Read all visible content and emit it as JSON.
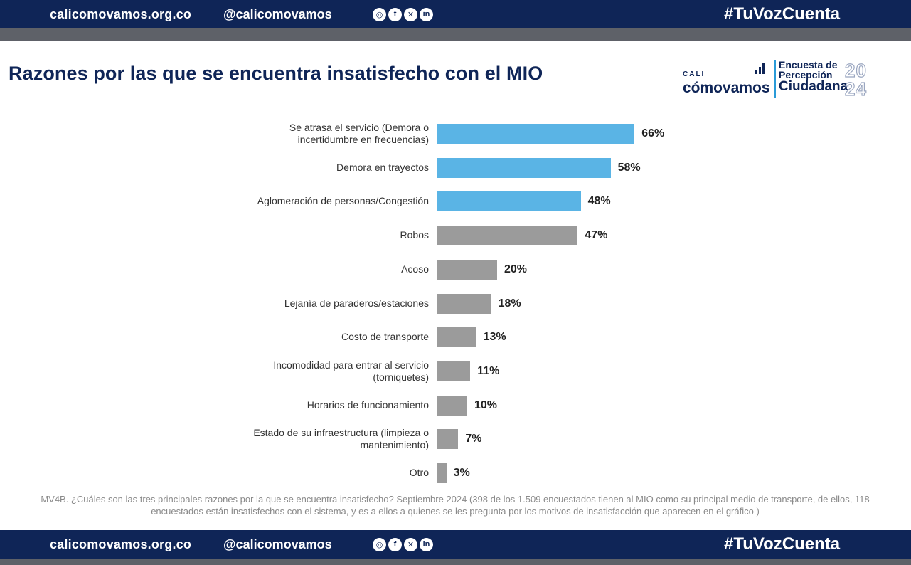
{
  "header": {
    "site": "calicomovamos.org.co",
    "handle": "@calicomovamos",
    "social_icons": [
      "instagram-icon",
      "facebook-icon",
      "x-icon",
      "linkedin-icon"
    ],
    "social_glyphs": [
      "◎",
      "f",
      "✕",
      "in"
    ],
    "hashtag": "#TuVozCuenta"
  },
  "footer": {
    "site": "calicomovamos.org.co",
    "handle": "@calicomovamos",
    "hashtag": "#TuVozCuenta"
  },
  "logo": {
    "cali": "CALI",
    "brand": "cómovamos",
    "line1": "Encuesta de",
    "line2": "Percepción",
    "line3": "Ciudadana",
    "year_top": "20",
    "year_bottom": "24"
  },
  "colors": {
    "navy": "#0f2557",
    "highlight": "#5ab4e5",
    "neutral": "#9b9b9b"
  },
  "footnote": "MV4B. ¿Cuáles son las tres principales razones por la que se encuentra insatisfecho? Septiembre 2024 (398 de los 1.509 encuestados tienen al MIO como su principal medio de transporte, de ellos, 118 encuestados están insatisfechos con el sistema, y es a ellos a quienes se les pregunta por los motivos de insatisfacción que aparecen en el gráfico )",
  "chart_data": {
    "type": "bar",
    "orientation": "horizontal",
    "title": "Razones por las que se encuentra insatisfecho con el MIO",
    "xlabel": "",
    "ylabel": "",
    "xlim": [
      0,
      100
    ],
    "grid": false,
    "unit": "%",
    "categories": [
      "Se atrasa el servicio (Demora o incertidumbre en frecuencias)",
      "Demora en trayectos",
      "Aglomeración de personas/Congestión",
      "Robos",
      "Acoso",
      "Lejanía de paraderos/estaciones",
      "Costo de transporte",
      "Incomodidad para entrar al servicio (torniquetes)",
      "Horarios de funcionamiento",
      "Estado de su infraestructura (limpieza o mantenimiento)",
      "Otro"
    ],
    "values": [
      66,
      58,
      48,
      47,
      20,
      18,
      13,
      11,
      10,
      7,
      3
    ],
    "labels": [
      "66%",
      "58%",
      "48%",
      "47%",
      "20%",
      "18%",
      "13%",
      "11%",
      "10%",
      "7%",
      "3%"
    ],
    "highlighted": [
      true,
      true,
      true,
      false,
      false,
      false,
      false,
      false,
      false,
      false,
      false
    ]
  }
}
